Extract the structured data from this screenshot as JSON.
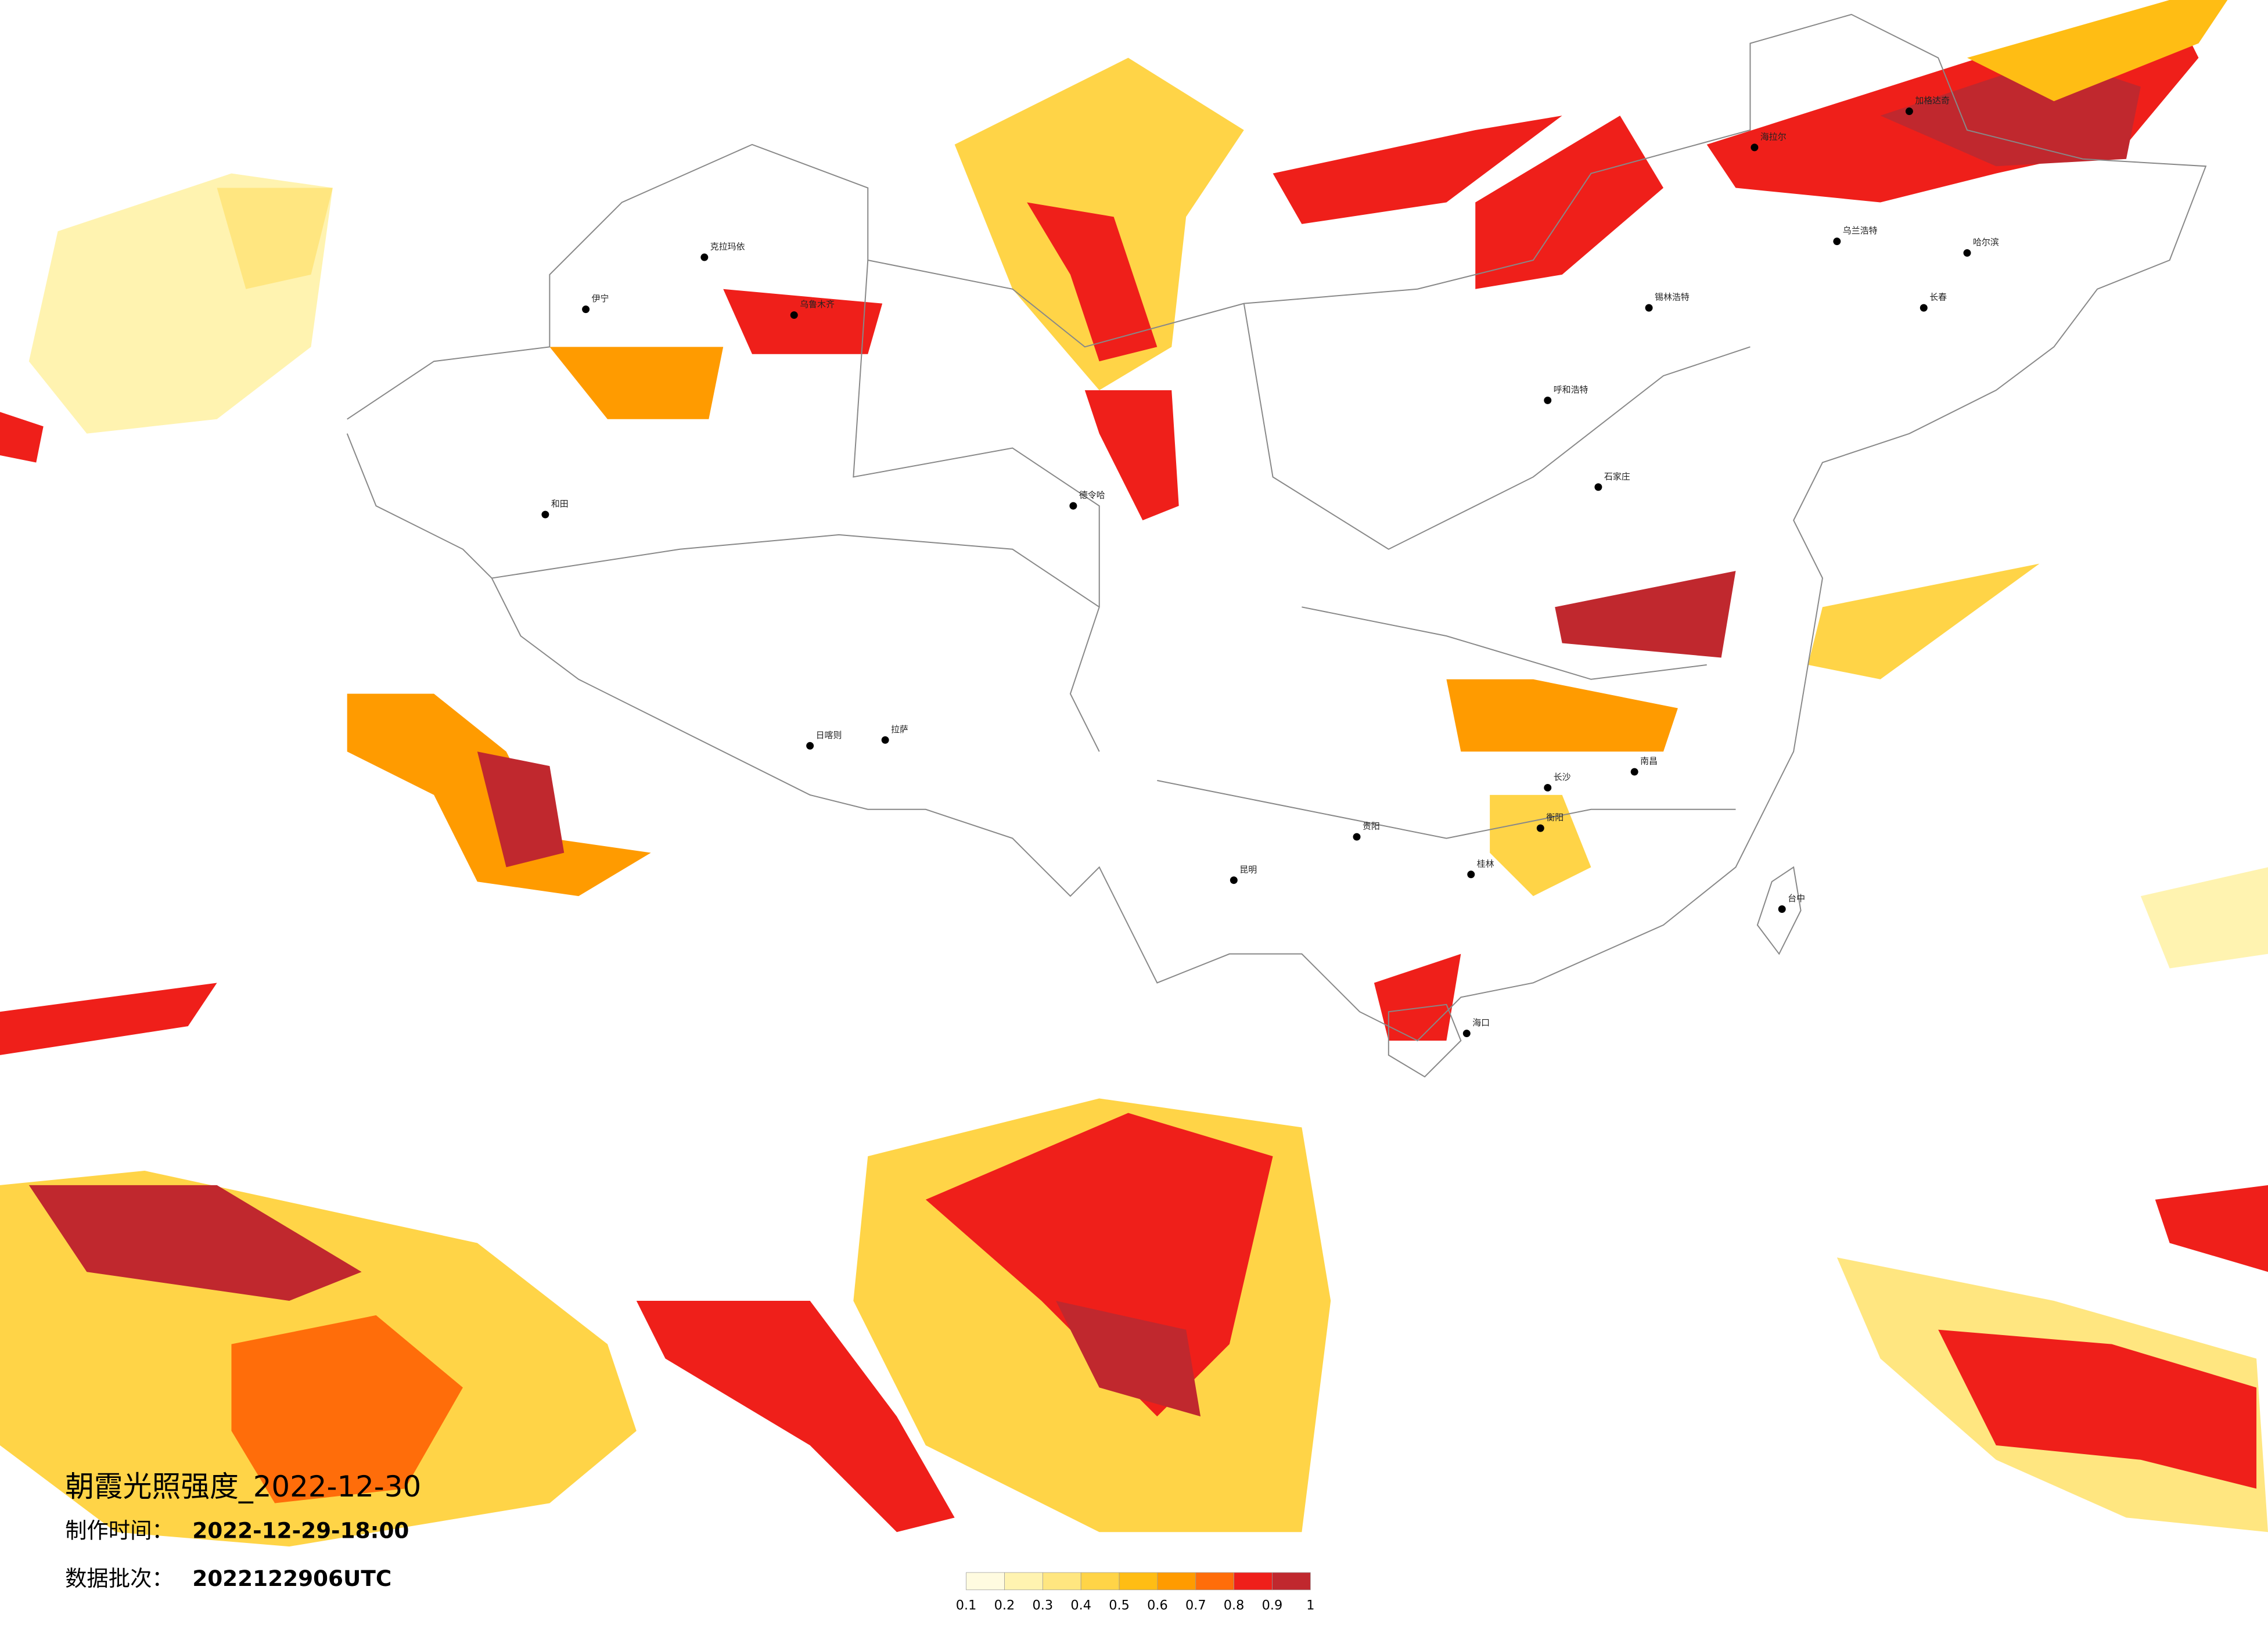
{
  "title": "朝霞光照强度_2022-12-30",
  "made_label": "制作时间：",
  "made_value": "2022-12-29-18:00",
  "batch_label": "数据批次：",
  "batch_value": "2022122906UTC",
  "colorbar": {
    "ticks": [
      0.1,
      0.2,
      0.3,
      0.4,
      0.5,
      0.6,
      0.7,
      0.8,
      0.9,
      1
    ],
    "colors": [
      "#fffbe0",
      "#fff3b0",
      "#ffe680",
      "#ffd447",
      "#ffbd14",
      "#ff9b00",
      "#ff6d0a",
      "#ef1f1a",
      "#c0282e"
    ]
  },
  "cities": [
    "克拉玛依",
    "伊宁",
    "乌鲁木齐",
    "和田",
    "德令哈",
    "日喀则",
    "拉萨",
    "海拉尔",
    "加格达奇",
    "哈尔滨",
    "乌兰浩特",
    "长春",
    "锡林浩特",
    "呼和浩特",
    "石家庄",
    "南昌",
    "长沙",
    "衡阳",
    "贵阳",
    "昆明",
    "桂林",
    "海口",
    "台中"
  ]
}
